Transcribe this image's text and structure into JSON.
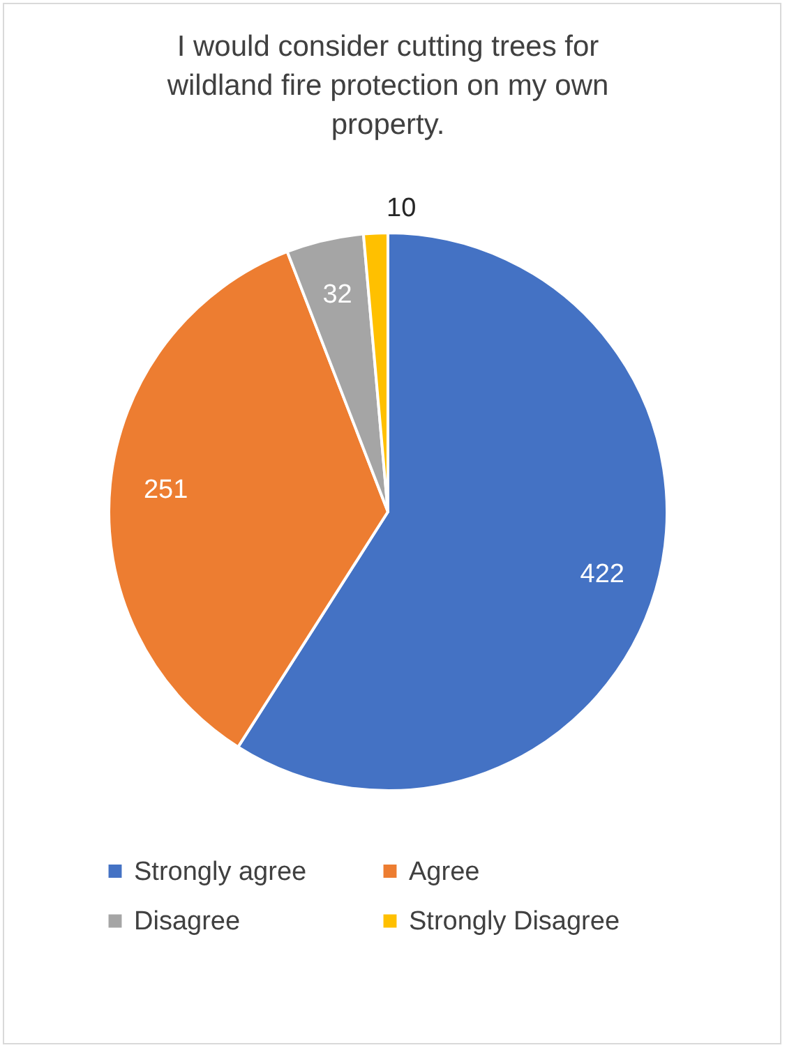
{
  "chart_data": {
    "type": "pie",
    "title": "I would consider cutting trees for wildland fire protection on my own property.",
    "categories": [
      "Strongly agree",
      "Agree",
      "Disagree",
      "Strongly Disagree"
    ],
    "values": [
      422,
      251,
      32,
      10
    ],
    "colors": [
      "#4472c4",
      "#ed7d31",
      "#a5a5a5",
      "#ffc000"
    ],
    "data_labels": true,
    "legend": "bottom"
  }
}
